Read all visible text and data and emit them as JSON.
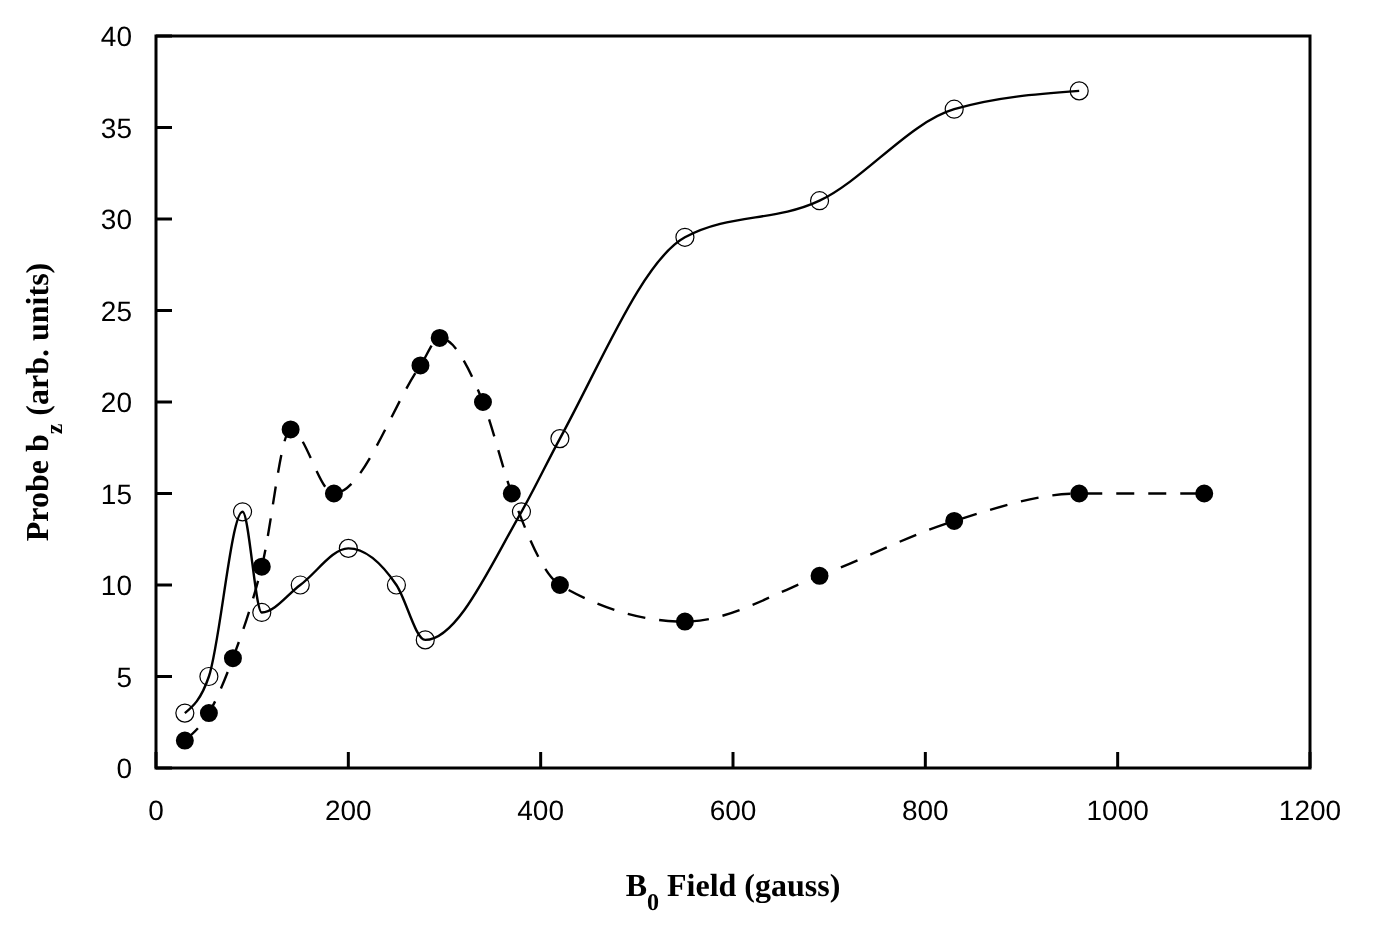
{
  "chart_data": {
    "type": "line",
    "xlabel": "B$_{0}$ Field  (gauss)",
    "ylabel": "Probe b$_{z}$  (arb. units)",
    "xlim": [
      0,
      1200
    ],
    "xticks": [
      0,
      200,
      400,
      600,
      800,
      1000,
      1200
    ],
    "ylim": [
      0,
      40
    ],
    "yticks": [
      0,
      5,
      10,
      15,
      20,
      25,
      30,
      35,
      40
    ],
    "grid": false,
    "series": [
      {
        "color": "#000000",
        "marker": "circle",
        "line_style": "solid",
        "x": [
          30,
          55,
          90,
          110,
          150,
          200,
          250,
          280,
          380,
          420,
          550,
          690,
          830,
          960
        ],
        "values": [
          3,
          5,
          14,
          8.5,
          10,
          12,
          10,
          7,
          14,
          18,
          29,
          31,
          36,
          37
        ]
      },
      {
        "color": "#000000",
        "marker": "circle",
        "line_style": "dashed",
        "x": [
          30,
          55,
          80,
          110,
          140,
          185,
          275,
          295,
          340,
          370,
          420,
          550,
          690,
          830,
          960,
          1090
        ],
        "values": [
          1.5,
          3,
          6,
          11,
          18.5,
          15,
          22,
          23.5,
          20,
          15,
          10,
          8,
          10.5,
          13.5,
          15,
          15
        ]
      }
    ]
  }
}
